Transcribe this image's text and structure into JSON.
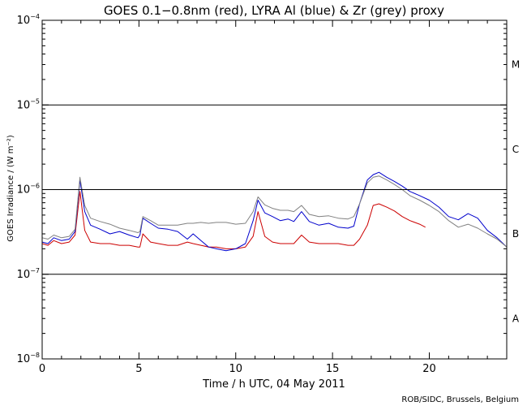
{
  "chart_data": {
    "type": "line",
    "title": "GOES 0.1−0.8nm (red), LYRA Al (blue) & Zr (grey) proxy",
    "xlabel": "Time / h UTC, 04 May 2011",
    "ylabel": "GOES Irradiance / (W m⁻²)",
    "xlim": [
      0,
      24
    ],
    "ylim": [
      1e-08,
      0.0001
    ],
    "yscale": "log",
    "x_ticks": [
      0,
      5,
      10,
      15,
      20
    ],
    "x_tick_labels": [
      "0",
      "5",
      "10",
      "15",
      "20"
    ],
    "y_ticks": [
      1e-08,
      1e-07,
      1e-06,
      1e-05,
      0.0001
    ],
    "y_tick_base": "10",
    "y_tick_exponents": [
      "−8",
      "−7",
      "−6",
      "−5",
      "−4"
    ],
    "flare_class_lines": [
      1e-07,
      1e-06,
      1e-05
    ],
    "flare_classes": [
      {
        "label": "A",
        "y": 3e-08
      },
      {
        "label": "B",
        "y": 3e-07
      },
      {
        "label": "C",
        "y": 3e-06
      },
      {
        "label": "M",
        "y": 3e-05
      }
    ],
    "series": [
      {
        "color": "#cc0000",
        "x": [
          0,
          0.3,
          0.6,
          1.0,
          1.4,
          1.7,
          1.95,
          2.2,
          2.5,
          3.0,
          3.5,
          4.0,
          4.5,
          4.95,
          5.05,
          5.2,
          5.6,
          6.0,
          6.5,
          7.0,
          7.5,
          7.8,
          8.2,
          8.6,
          9.0,
          9.5,
          10.0,
          10.5,
          10.9,
          11.15,
          11.5,
          11.9,
          12.3,
          12.7,
          13.0,
          13.4,
          13.8,
          14.3,
          14.8,
          15.3,
          15.8,
          16.1,
          16.4,
          16.8,
          17.1,
          17.4,
          17.8,
          18.2,
          18.6,
          19.0,
          19.5,
          19.8
        ],
        "y": [
          2.3e-07,
          2.2e-07,
          2.5e-07,
          2.3e-07,
          2.4e-07,
          2.9e-07,
          9.5e-07,
          3.3e-07,
          2.4e-07,
          2.3e-07,
          2.3e-07,
          2.2e-07,
          2.2e-07,
          2.1e-07,
          2.1e-07,
          3e-07,
          2.4e-07,
          2.3e-07,
          2.2e-07,
          2.2e-07,
          2.4e-07,
          2.3e-07,
          2.2e-07,
          2.1e-07,
          2.1e-07,
          2e-07,
          2e-07,
          2.1e-07,
          2.8e-07,
          5.5e-07,
          2.8e-07,
          2.4e-07,
          2.3e-07,
          2.3e-07,
          2.3e-07,
          2.9e-07,
          2.4e-07,
          2.3e-07,
          2.3e-07,
          2.3e-07,
          2.2e-07,
          2.2e-07,
          2.6e-07,
          3.8e-07,
          6.5e-07,
          6.8e-07,
          6.2e-07,
          5.6e-07,
          4.8e-07,
          4.3e-07,
          3.9e-07,
          3.6e-07
        ]
      },
      {
        "color": "#0000cc",
        "x": [
          0,
          0.3,
          0.6,
          1.0,
          1.4,
          1.7,
          1.95,
          2.2,
          2.5,
          3.0,
          3.5,
          4.0,
          4.5,
          4.95,
          5.05,
          5.2,
          5.6,
          6.0,
          6.5,
          7.0,
          7.5,
          7.8,
          8.2,
          8.6,
          9.0,
          9.5,
          10.0,
          10.5,
          10.9,
          11.15,
          11.5,
          11.9,
          12.3,
          12.7,
          13.0,
          13.4,
          13.8,
          14.3,
          14.8,
          15.3,
          15.8,
          16.1,
          16.4,
          16.8,
          17.1,
          17.4,
          17.8,
          18.2,
          18.6,
          19.0,
          19.5,
          20.0,
          20.5,
          21.0,
          21.5,
          22.0,
          22.5,
          23.0,
          23.5,
          24.0
        ],
        "y": [
          2.4e-07,
          2.3e-07,
          2.7e-07,
          2.5e-07,
          2.6e-07,
          3.2e-07,
          1.3e-06,
          5.5e-07,
          3.8e-07,
          3.4e-07,
          3e-07,
          3.2e-07,
          2.9e-07,
          2.7e-07,
          2.9e-07,
          4.6e-07,
          4e-07,
          3.5e-07,
          3.4e-07,
          3.2e-07,
          2.6e-07,
          3e-07,
          2.5e-07,
          2.1e-07,
          2e-07,
          1.9e-07,
          2e-07,
          2.3e-07,
          4.3e-07,
          7.5e-07,
          5.3e-07,
          4.8e-07,
          4.3e-07,
          4.5e-07,
          4.2e-07,
          5.5e-07,
          4.2e-07,
          3.8e-07,
          4e-07,
          3.6e-07,
          3.5e-07,
          3.7e-07,
          6.8e-07,
          1.3e-06,
          1.5e-06,
          1.6e-06,
          1.4e-06,
          1.25e-06,
          1.1e-06,
          9.5e-07,
          8.5e-07,
          7.5e-07,
          6.2e-07,
          4.8e-07,
          4.4e-07,
          5.2e-07,
          4.6e-07,
          3.3e-07,
          2.7e-07,
          2.1e-07
        ]
      },
      {
        "color": "#808080",
        "x": [
          0,
          0.3,
          0.6,
          1.0,
          1.4,
          1.7,
          1.95,
          2.2,
          2.5,
          3.0,
          3.5,
          4.0,
          4.5,
          4.95,
          5.05,
          5.2,
          5.6,
          6.0,
          6.5,
          7.0,
          7.5,
          7.8,
          8.2,
          8.6,
          9.0,
          9.5,
          10.0,
          10.5,
          10.9,
          11.15,
          11.5,
          11.9,
          12.3,
          12.7,
          13.0,
          13.4,
          13.8,
          14.3,
          14.8,
          15.3,
          15.8,
          16.1,
          16.4,
          16.8,
          17.1,
          17.4,
          17.8,
          18.2,
          18.6,
          19.0,
          19.5,
          20.0,
          20.5,
          21.0,
          21.5,
          22.0,
          22.5,
          23.0,
          23.5,
          24.0
        ],
        "y": [
          2.7e-07,
          2.6e-07,
          2.9e-07,
          2.7e-07,
          2.8e-07,
          3.4e-07,
          1.4e-06,
          6.5e-07,
          4.6e-07,
          4.2e-07,
          3.9e-07,
          3.5e-07,
          3.3e-07,
          3.1e-07,
          3.2e-07,
          4.8e-07,
          4.3e-07,
          3.8e-07,
          3.8e-07,
          3.8e-07,
          4e-07,
          4e-07,
          4.1e-07,
          4e-07,
          4.1e-07,
          4.1e-07,
          3.9e-07,
          4e-07,
          5.5e-07,
          8.2e-07,
          6.6e-07,
          6e-07,
          5.7e-07,
          5.7e-07,
          5.5e-07,
          6.5e-07,
          5.1e-07,
          4.8e-07,
          4.9e-07,
          4.6e-07,
          4.5e-07,
          4.8e-07,
          6.8e-07,
          1.2e-06,
          1.4e-06,
          1.45e-06,
          1.3e-06,
          1.15e-06,
          1e-06,
          8.5e-07,
          7.5e-07,
          6.5e-07,
          5.5e-07,
          4.3e-07,
          3.6e-07,
          3.9e-07,
          3.5e-07,
          3e-07,
          2.6e-07,
          2.1e-07
        ]
      }
    ]
  },
  "footer": {
    "credit": "ROB/SIDC, Brussels, Belgium"
  }
}
